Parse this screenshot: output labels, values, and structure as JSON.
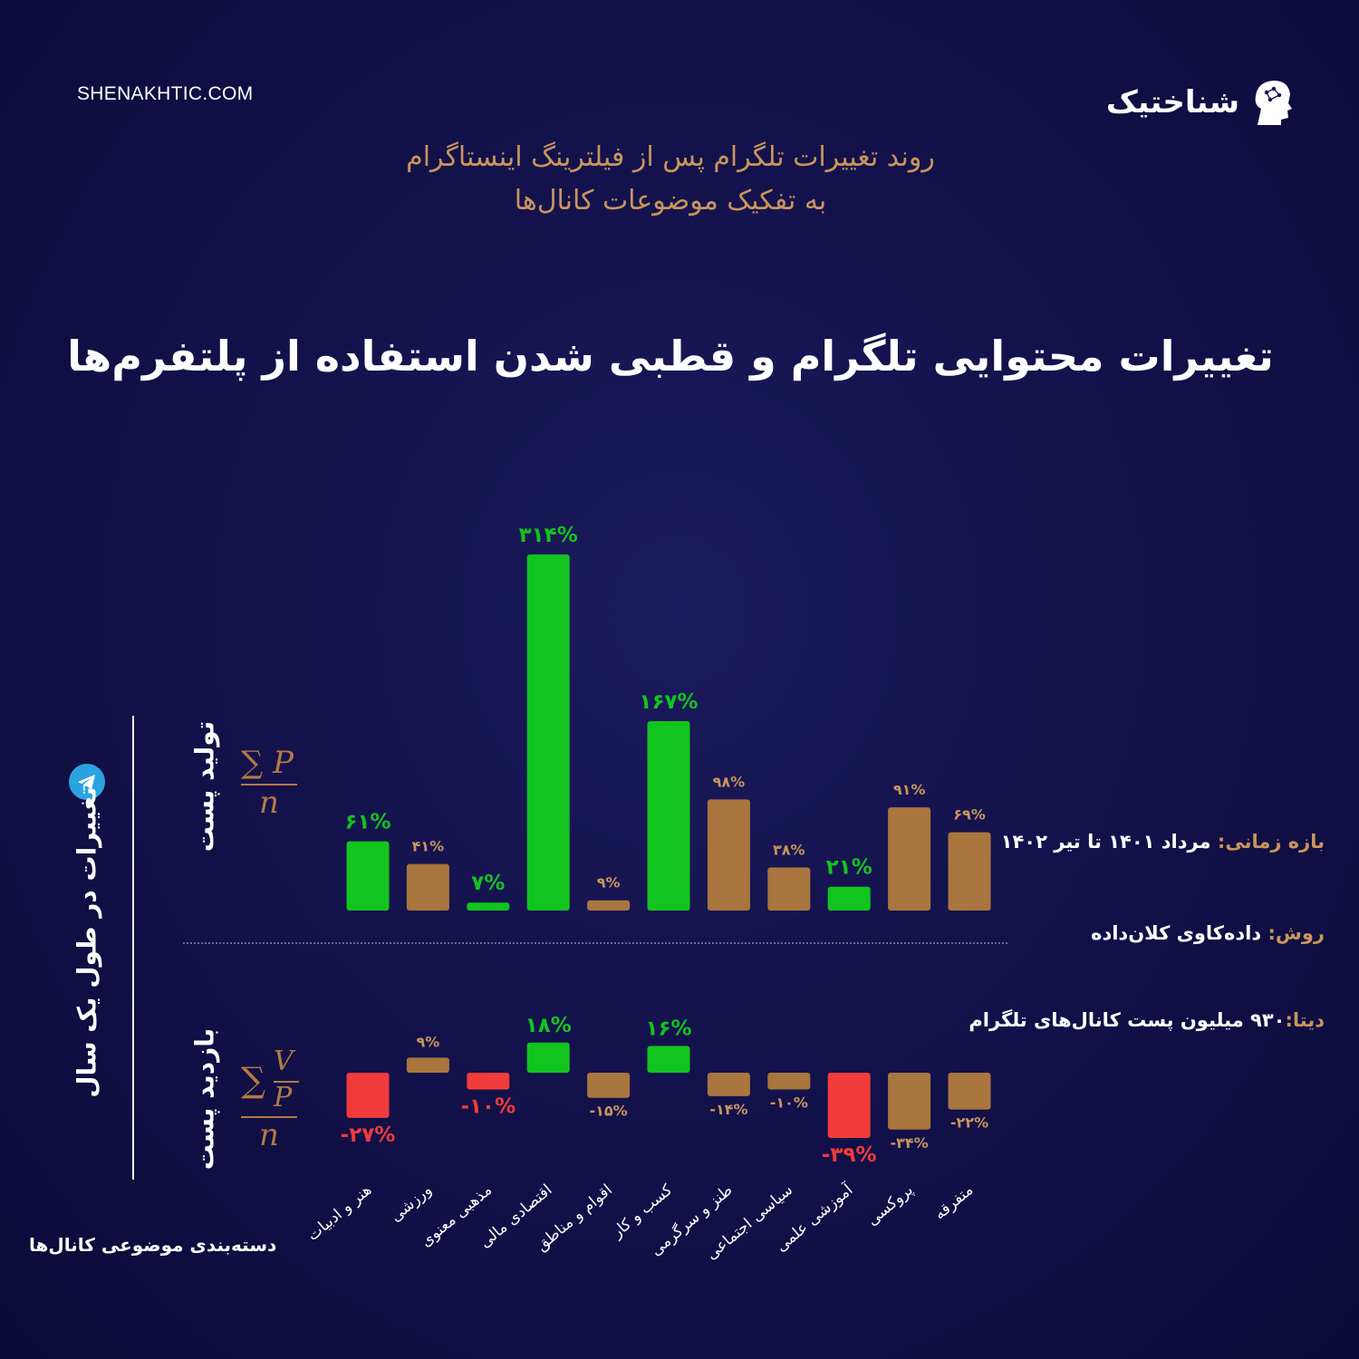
{
  "site_url": "SHENAKHTIC.COM",
  "brand_name": "شناختیک",
  "subtitle_line1": "روند تغییرات تلگرام پس از فیلترینگ اینستاگرام",
  "subtitle_line2": "به تفکیک موضوعات کانال‌ها",
  "main_title": "تغییرات محتوایی تلگرام و قطبی شدن استفاده از پلتفرم‌ها",
  "side_label": "تغییرات در طول یک سال",
  "upper_row_label": "تولید پست",
  "lower_row_label": "بازدید پست",
  "categories_caption": "دسته‌بندی موضوعی کانال‌ها",
  "info": {
    "period_key": "بازه زمانی:",
    "period_value": " مرداد ۱۴۰۱ تا تیر ۱۴۰۲",
    "method_key": "روش:",
    "method_value": " داده‌کاوی کلان‌داده",
    "data_key": "دیتا:",
    "data_value": "۹۳۰ میلیون پست کانال‌های تلگرام"
  },
  "colors": {
    "green": "#12c41e",
    "tan": "#a8763e",
    "red": "#f23b3b",
    "gold_text": "#c9955c"
  },
  "chart_data": [
    {
      "type": "bar",
      "name": "تولید پست",
      "categories": [
        "هنر و ادبیات",
        "ورزشی",
        "مذهبی معنوی",
        "اقتصادی مالی",
        "اقوام و مناطق",
        "کسب و کار",
        "طنز و سرگرمی",
        "سیاسی اجتماعی",
        "آموزشی علمی",
        "پروکسی",
        "متفرقه"
      ],
      "values": [
        61,
        41,
        7,
        314,
        9,
        167,
        98,
        38,
        21,
        91,
        69
      ],
      "labels": [
        "۶۱%",
        "۴۱%",
        "۷%",
        "۳۱۴%",
        "۹%",
        "۱۶۷%",
        "۹۸%",
        "۳۸%",
        "۲۱%",
        "۹۱%",
        "۶۹%"
      ],
      "highlight": [
        true,
        false,
        true,
        true,
        false,
        true,
        false,
        false,
        true,
        false,
        false
      ]
    },
    {
      "type": "bar",
      "name": "بازدید پست",
      "categories": [
        "هنر و ادبیات",
        "ورزشی",
        "مذهبی معنوی",
        "اقتصادی مالی",
        "اقوام و مناطق",
        "کسب و کار",
        "طنز و سرگرمی",
        "سیاسی اجتماعی",
        "آموزشی علمی",
        "پروکسی",
        "متفرقه"
      ],
      "values": [
        -27,
        9,
        -10,
        18,
        -15,
        16,
        -14,
        -10,
        -39,
        -34,
        -22
      ],
      "labels": [
        "-۲۷%",
        "۹%",
        "-۱۰%",
        "۱۸%",
        "-۱۵%",
        "۱۶%",
        "-۱۴%",
        "-۱۰%",
        "-۳۹%",
        "-۳۴%",
        "-۲۲%"
      ],
      "highlight": [
        true,
        false,
        true,
        true,
        false,
        true,
        false,
        false,
        true,
        false,
        false
      ]
    }
  ]
}
